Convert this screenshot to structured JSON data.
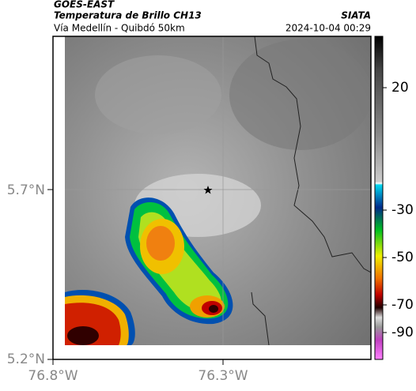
{
  "header": {
    "source": "GOES-EAST",
    "product": "Temperatura de Brillo CH13",
    "route": "Vía Medellín - Quibdó 50km",
    "agency": "SIATA",
    "timestamp": "2024-10-04 00:29"
  },
  "map": {
    "lat_labels": [
      "5.7°N",
      "5.2°N"
    ],
    "lon_labels": [
      "76.8°W",
      "76.3°W"
    ]
  },
  "colorbar": {
    "ticks": [
      20,
      -30,
      -50,
      -70,
      -90
    ]
  }
}
